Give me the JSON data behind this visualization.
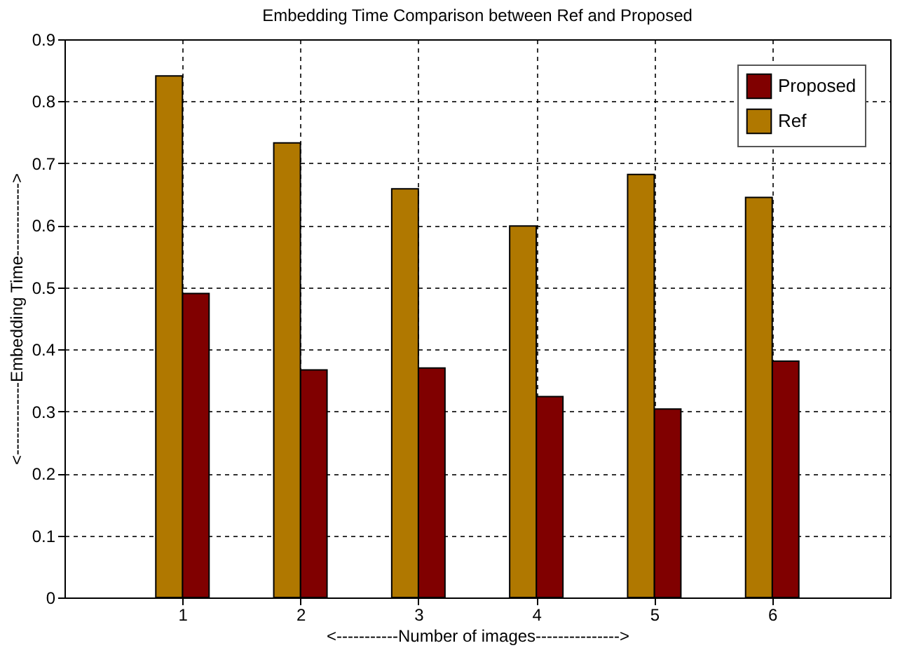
{
  "chart_data": {
    "type": "bar",
    "title": "Embedding Time Comparison between Ref and Proposed",
    "xlabel": "<-----------Number of images--------------->",
    "ylabel": "<-------------Embedding Time------------->",
    "x": [
      1,
      2,
      3,
      4,
      5,
      6
    ],
    "xlim": [
      0,
      7
    ],
    "xticks": [
      1,
      2,
      3,
      4,
      5,
      6
    ],
    "ylim": [
      0,
      0.9
    ],
    "yticks": [
      0,
      0.1,
      0.2,
      0.3,
      0.4,
      0.5,
      0.6,
      0.7,
      0.8,
      0.9
    ],
    "series": [
      {
        "name": "Proposed",
        "color": "#800000",
        "values": [
          0.49,
          0.367,
          0.37,
          0.324,
          0.304,
          0.381
        ]
      },
      {
        "name": "Ref",
        "color": "#b07800",
        "values": [
          0.841,
          0.733,
          0.659,
          0.599,
          0.682,
          0.645
        ]
      }
    ],
    "grid": true,
    "legend": "top right"
  }
}
